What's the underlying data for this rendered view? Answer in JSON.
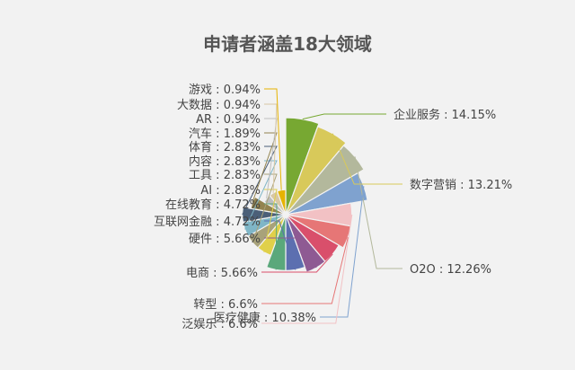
{
  "chart_data": {
    "type": "pie",
    "variant": "rose",
    "title": "申请者涵盖18大领域",
    "legend": "none",
    "slices": [
      {
        "label": "企业服务 : 14.15%",
        "value": 14.15,
        "color": "#77a832"
      },
      {
        "label": "数字营销 : 13.21%",
        "value": 13.21,
        "color": "#d8c95a"
      },
      {
        "label": "O2O : 12.26%",
        "value": 12.26,
        "color": "#b3b89c"
      },
      {
        "label": "医疗健康 : 10.38%",
        "value": 10.38,
        "color": "#7fa2cf"
      },
      {
        "label": "泛娱乐 : 6.6%",
        "value": 6.6,
        "color": "#f2c1c4"
      },
      {
        "label": "转型 : 6.6%",
        "value": 6.6,
        "color": "#e67676"
      },
      {
        "label": "电商 : 5.66%",
        "value": 5.66,
        "color": "#d94f6b"
      },
      {
        "label": "硬件 : 5.66%",
        "value": 5.66,
        "color": "#8e5a93"
      },
      {
        "label": "互联网金融 : 4.72%",
        "value": 4.72,
        "color": "#5c6fb0"
      },
      {
        "label": "在线教育 : 4.72%",
        "value": 4.72,
        "color": "#5aa87b"
      },
      {
        "label": "AI : 2.83%",
        "value": 2.83,
        "color": "#e0d04a"
      },
      {
        "label": "工具 : 2.83%",
        "value": 2.83,
        "color": "#a8a27a"
      },
      {
        "label": "内容 : 2.83%",
        "value": 2.83,
        "color": "#7fb6c7"
      },
      {
        "label": "体育 : 2.83%",
        "value": 2.83,
        "color": "#4b5f78"
      },
      {
        "label": "汽车 : 1.89%",
        "value": 1.89,
        "color": "#93834f"
      },
      {
        "label": "AR : 0.94%",
        "value": 0.94,
        "color": "#bdbdbd"
      },
      {
        "label": "大数据 : 0.94%",
        "value": 0.94,
        "color": "#d8c7a4"
      },
      {
        "label": "游戏 : 0.94%",
        "value": 0.94,
        "color": "#e6b300"
      }
    ]
  }
}
